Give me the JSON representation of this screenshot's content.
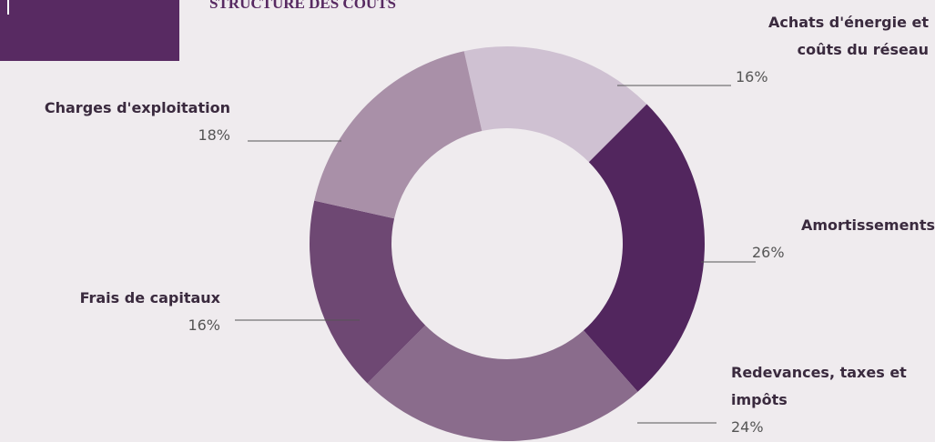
{
  "chart_data": {
    "type": "donut",
    "title": "STRUCTURE DES COÛTS",
    "categories": [
      "Achats d'énergie et coûts du réseau",
      "Amortissements",
      "Redevances, taxes et impôts",
      "Frais de capitaux",
      "Charges d'exploitation"
    ],
    "values": [
      16,
      26,
      24,
      16,
      18
    ],
    "value_labels": [
      "16%",
      "26%",
      "24%",
      "16%",
      "18%"
    ],
    "colors": [
      "#cfc1d2",
      "#52265e",
      "#8a6c8c",
      "#6e4873",
      "#a990a8"
    ]
  }
}
